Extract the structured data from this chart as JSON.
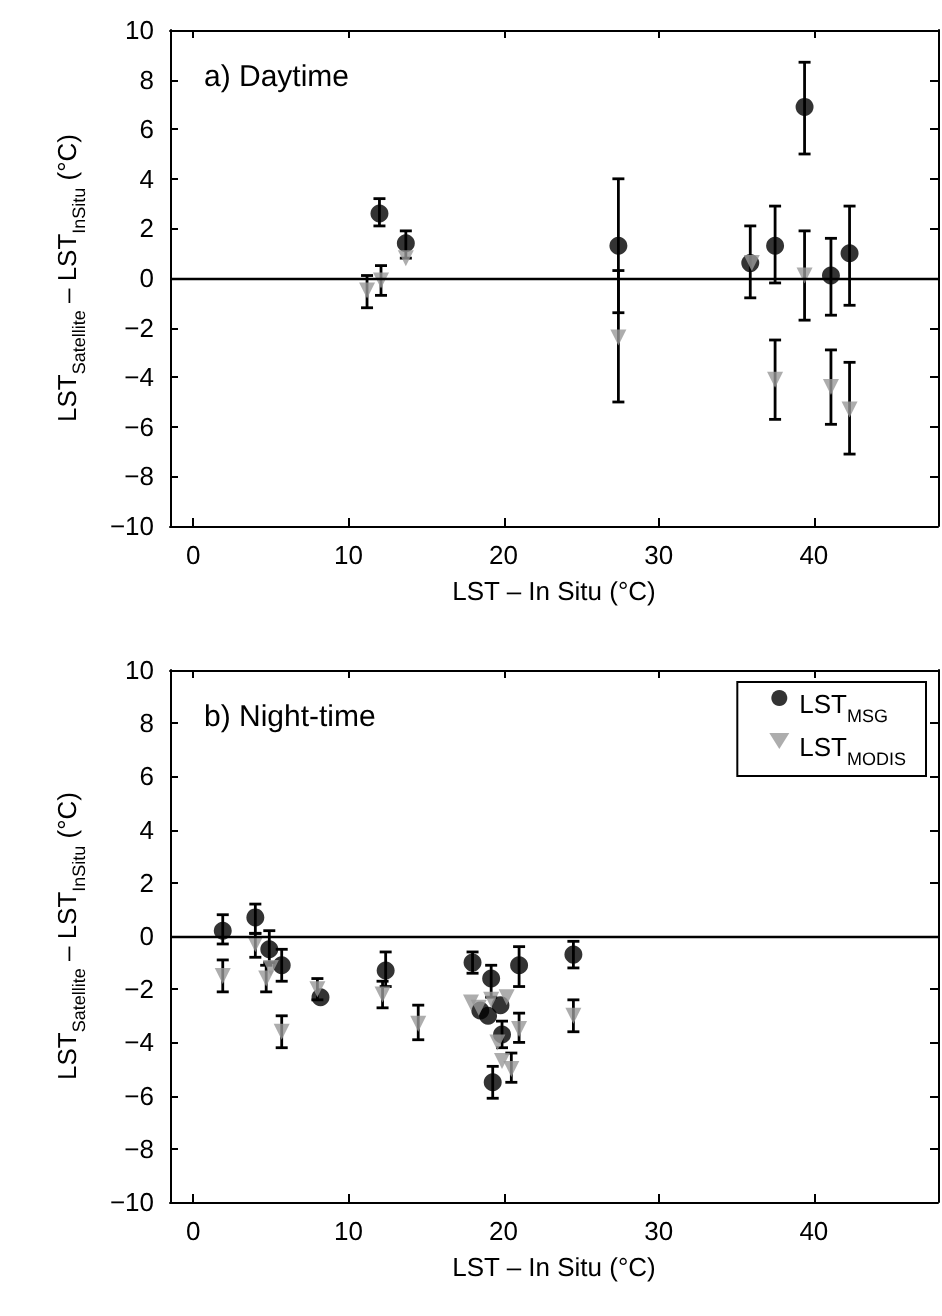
{
  "chart_data": [
    {
      "type": "scatter",
      "title": "a) Daytime",
      "xlabel": "LST – In Situ (°C)",
      "ylabel": "LST$_{Satellite}$ – LST$_{InSitu}$ (°C)",
      "xlim": [
        -1.5,
        48
      ],
      "xticks": [
        0,
        10,
        20,
        30,
        40
      ],
      "ylim": [
        -10,
        10
      ],
      "yticks": [
        -10,
        -8,
        -6,
        -4,
        -2,
        0,
        2,
        4,
        6,
        8,
        10
      ],
      "grid": false,
      "legend": false,
      "ref_lines": [
        {
          "axis": "y",
          "value": 0,
          "color": "#000000"
        }
      ],
      "series": [
        {
          "color": "#000000",
          "marker": "circle",
          "x": [
            12.0,
            13.7,
            27.4,
            35.9,
            37.5,
            39.4,
            41.1,
            42.3
          ],
          "values": [
            2.6,
            1.4,
            1.3,
            0.6,
            1.3,
            6.9,
            0.1,
            1.0
          ],
          "errors": [
            [
              2.1,
              3.2
            ],
            [
              0.8,
              1.9
            ],
            [
              -1.4,
              4.0
            ],
            [
              -0.8,
              2.1
            ],
            [
              -0.2,
              2.9
            ],
            [
              5.0,
              8.7
            ],
            [
              -1.5,
              1.6
            ],
            [
              -1.1,
              2.9
            ]
          ]
        },
        {
          "color": "#999999",
          "marker": "triangle",
          "x": [
            11.2,
            12.1,
            13.7,
            27.4,
            36.0,
            37.5,
            39.4,
            41.1,
            42.3
          ],
          "values": [
            -0.5,
            -0.1,
            0.8,
            -2.4,
            0.6,
            -4.1,
            0.1,
            -4.4,
            -5.3
          ],
          "errors": [
            [
              -1.2,
              0.1
            ],
            [
              -0.7,
              0.5
            ],
            null,
            [
              -5.0,
              0.3
            ],
            null,
            [
              -5.7,
              -2.5
            ],
            [
              -1.7,
              1.9
            ],
            [
              -5.9,
              -2.9
            ],
            [
              -7.1,
              -3.4
            ]
          ]
        }
      ]
    },
    {
      "type": "scatter",
      "title": "b) Night-time",
      "xlabel": "LST – In Situ (°C)",
      "ylabel": "LST$_{Satellite}$ – LST$_{InSitu}$ (°C)",
      "xlim": [
        -1.5,
        48
      ],
      "xticks": [
        0,
        10,
        20,
        30,
        40
      ],
      "ylim": [
        -10,
        10
      ],
      "yticks": [
        -10,
        -8,
        -6,
        -4,
        -2,
        0,
        2,
        4,
        6,
        8,
        10
      ],
      "grid": false,
      "legend": "top right",
      "ref_lines": [
        {
          "axis": "y",
          "value": 0,
          "color": "#000000"
        }
      ],
      "series": [
        {
          "name": "LST$_{MSG}$",
          "color": "#000000",
          "marker": "circle",
          "x": [
            1.9,
            4.0,
            4.9,
            5.7,
            8.2,
            12.4,
            18.0,
            19.2,
            18.5,
            19.0,
            19.8,
            19.9,
            19.3,
            21.0,
            24.5
          ],
          "values": [
            0.2,
            0.7,
            -0.5,
            -1.1,
            -2.3,
            -1.3,
            -1.0,
            -1.6,
            -2.8,
            -3.0,
            -2.6,
            -3.7,
            -5.5,
            -1.1,
            -0.7
          ],
          "errors": [
            [
              -0.3,
              0.8
            ],
            [
              0.1,
              1.2
            ],
            [
              -1.0,
              0.2
            ],
            [
              -1.7,
              -0.5
            ],
            null,
            [
              -1.9,
              -0.6
            ],
            [
              -1.4,
              -0.6
            ],
            [
              -2.3,
              -1.1
            ],
            null,
            null,
            null,
            [
              -4.2,
              -3.2
            ],
            [
              -6.1,
              -4.9
            ],
            [
              -1.9,
              -0.4
            ],
            [
              -1.2,
              -0.2
            ]
          ]
        },
        {
          "name": "LST$_{MODIS}$",
          "color": "#999999",
          "marker": "triangle",
          "x": [
            1.9,
            4.0,
            4.7,
            5.0,
            5.7,
            8.0,
            12.2,
            14.5,
            17.9,
            18.4,
            19.2,
            19.6,
            19.9,
            20.2,
            20.5,
            21.0,
            24.5
          ],
          "values": [
            -1.5,
            -0.3,
            -1.6,
            -1.2,
            -3.6,
            -2.0,
            -2.2,
            -3.3,
            -2.5,
            -2.7,
            -2.4,
            -4.0,
            -4.7,
            -2.3,
            -5.0,
            -3.5,
            -3.0
          ],
          "errors": [
            [
              -2.1,
              -0.9
            ],
            [
              -0.8,
              0.1
            ],
            [
              -2.1,
              -1.1
            ],
            null,
            [
              -4.2,
              -3.0
            ],
            [
              -2.4,
              -1.6
            ],
            [
              -2.7,
              -1.7
            ],
            [
              -3.9,
              -2.6
            ],
            null,
            null,
            null,
            null,
            null,
            null,
            [
              -5.5,
              -4.4
            ],
            [
              -4.0,
              -2.9
            ],
            [
              -3.6,
              -2.4
            ]
          ]
        }
      ]
    }
  ]
}
